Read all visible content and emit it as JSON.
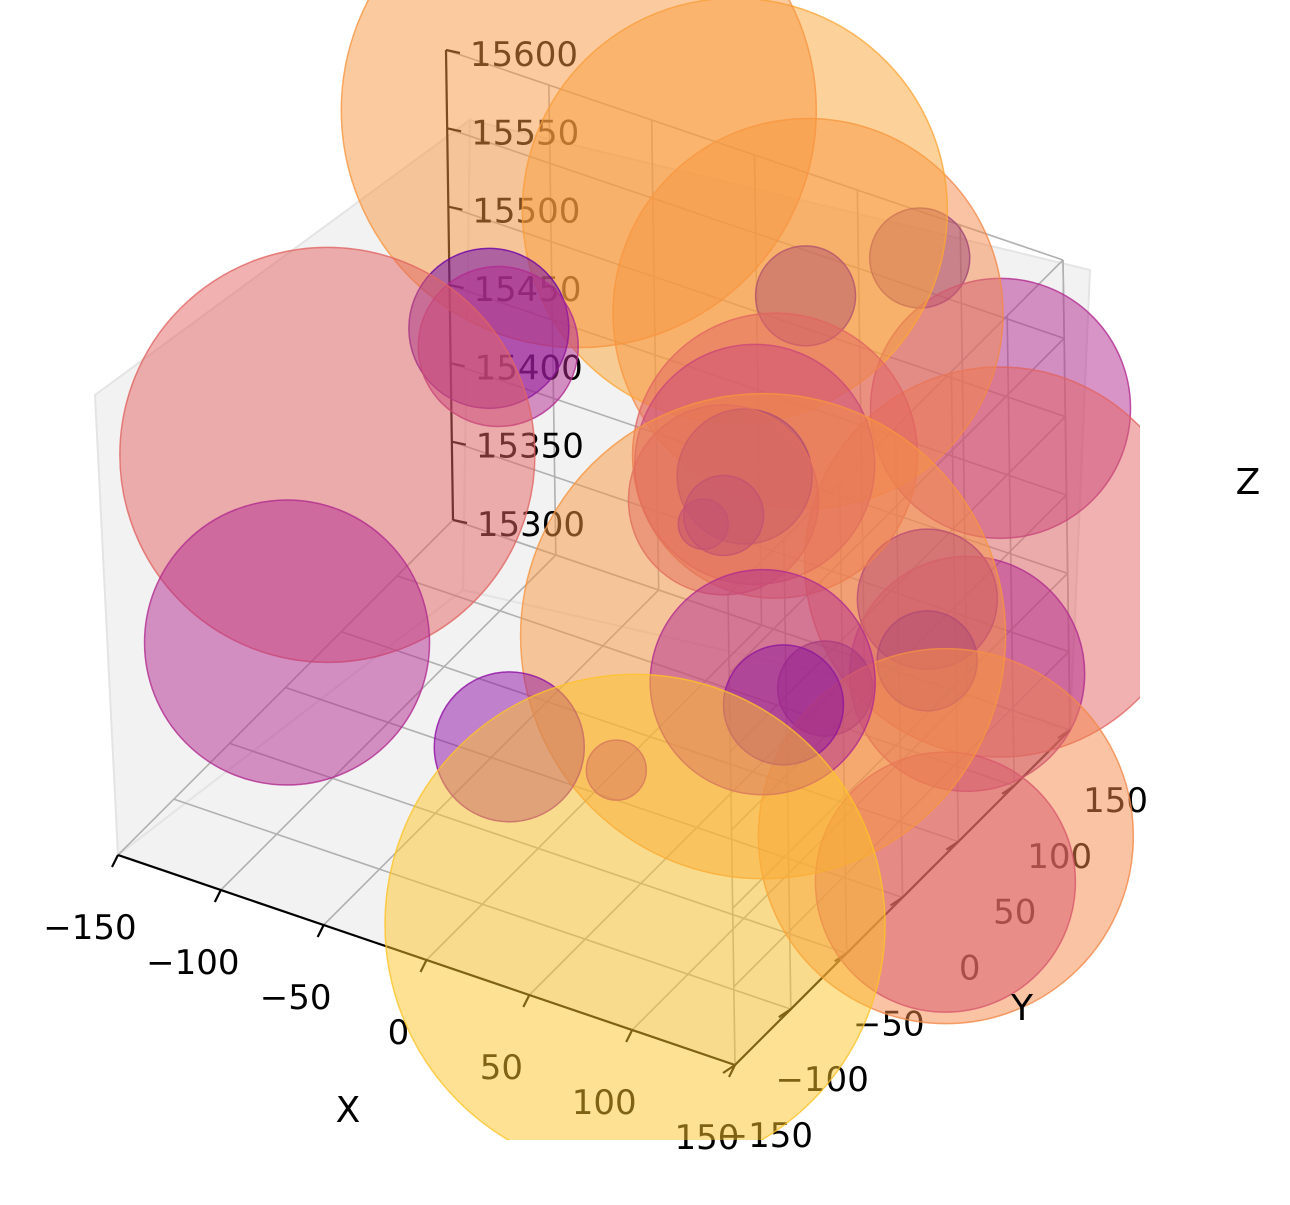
{
  "chart_data": {
    "type": "scatter",
    "projection": "3d",
    "title": "",
    "xlabel": "X",
    "ylabel": "Y",
    "zlabel": "Z",
    "xlim": [
      -150,
      150
    ],
    "ylim": [
      -150,
      150
    ],
    "zlim": [
      15300,
      15600
    ],
    "xticks": [
      "−150",
      "−100",
      "−50",
      "0",
      "50",
      "100",
      "150"
    ],
    "yticks": [
      "−150",
      "−100",
      "−50",
      "0",
      "50",
      "100",
      "150"
    ],
    "zticks": [
      "15300",
      "15350",
      "15400",
      "15450",
      "15500",
      "15550",
      "15600"
    ],
    "grid": true,
    "colormap": "plasma",
    "marker_alpha": 0.5,
    "points": [
      {
        "x": -80,
        "y": 140,
        "z": 15600,
        "size": 0.95,
        "color": "#f89540"
      },
      {
        "x": -10,
        "y": 150,
        "z": 15560,
        "size": 0.85,
        "color": "#fca636"
      },
      {
        "x": 25,
        "y": 150,
        "z": 15510,
        "size": 0.78,
        "color": "#f48849"
      },
      {
        "x": -150,
        "y": 40,
        "z": 15420,
        "size": 0.83,
        "color": "#e16462"
      },
      {
        "x": -120,
        "y": 130,
        "z": 15450,
        "size": 0.32,
        "color": "#6a00a8"
      },
      {
        "x": -110,
        "y": 120,
        "z": 15450,
        "size": 0.32,
        "color": "#b12a90"
      },
      {
        "x": -160,
        "y": 20,
        "z": 15310,
        "size": 0.57,
        "color": "#b12a90"
      },
      {
        "x": 35,
        "y": 130,
        "z": 15540,
        "size": 0.2,
        "color": "#6a00a8"
      },
      {
        "x": 80,
        "y": 150,
        "z": 15570,
        "size": 0.2,
        "color": "#4c02a1"
      },
      {
        "x": 135,
        "y": 120,
        "z": 15520,
        "size": 0.52,
        "color": "#b12a90"
      },
      {
        "x": 150,
        "y": 90,
        "z": 15450,
        "size": 0.78,
        "color": "#e16462"
      },
      {
        "x": 30,
        "y": 110,
        "z": 15450,
        "size": 0.57,
        "color": "#e16462"
      },
      {
        "x": 45,
        "y": 70,
        "z": 15370,
        "size": 0.97,
        "color": "#f89540"
      },
      {
        "x": 20,
        "y": 110,
        "z": 15440,
        "size": 0.48,
        "color": "#cc4778"
      },
      {
        "x": 10,
        "y": 100,
        "z": 15420,
        "size": 0.38,
        "color": "#cc4778"
      },
      {
        "x": 15,
        "y": 110,
        "z": 15430,
        "size": 0.27,
        "color": "#6a00a8"
      },
      {
        "x": 10,
        "y": 100,
        "z": 15410,
        "size": 0.16,
        "color": "#8f0da4"
      },
      {
        "x": 0,
        "y": 100,
        "z": 15400,
        "size": 0.1,
        "color": "#8f0da4"
      },
      {
        "x": 50,
        "y": 60,
        "z": 15350,
        "size": 0.45,
        "color": "#b12a90"
      },
      {
        "x": 60,
        "y": 60,
        "z": 15340,
        "size": 0.24,
        "color": "#6a00a8"
      },
      {
        "x": 75,
        "y": 70,
        "z": 15350,
        "size": 0.19,
        "color": "#4c02a1"
      },
      {
        "x": 120,
        "y": 80,
        "z": 15420,
        "size": 0.28,
        "color": "#7e03a8"
      },
      {
        "x": 125,
        "y": 70,
        "z": 15390,
        "size": 0.2,
        "color": "#6a00a8"
      },
      {
        "x": 150,
        "y": 60,
        "z": 15400,
        "size": 0.47,
        "color": "#b12a90"
      },
      {
        "x": 155,
        "y": 30,
        "z": 15320,
        "size": 0.75,
        "color": "#f48849"
      },
      {
        "x": 160,
        "y": 20,
        "z": 15300,
        "size": 0.52,
        "color": "#d8576b"
      },
      {
        "x": -30,
        "y": -20,
        "z": 15330,
        "size": 0.3,
        "color": "#8f0da4"
      },
      {
        "x": 0,
        "y": 20,
        "z": 15300,
        "size": 0.12,
        "color": "#b12a90"
      },
      {
        "x": 80,
        "y": -110,
        "z": 15330,
        "size": 1.0,
        "color": "#fdc328"
      }
    ]
  }
}
